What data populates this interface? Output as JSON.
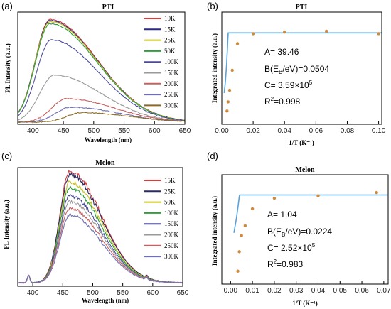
{
  "chart_data": [
    {
      "id": "a",
      "type": "line",
      "panel_label": "(a)",
      "title": "PTI",
      "xlabel": "Wavelength (nm)",
      "ylabel": "PL Intensity (a.u.)",
      "xlim": [
        375,
        650
      ],
      "ylim": [
        0,
        1.05
      ],
      "xticks": [
        "400",
        "450",
        "500",
        "550",
        "600",
        "650"
      ],
      "xtick_values": [
        400,
        450,
        500,
        550,
        600,
        650
      ],
      "legend_placement": "top-right",
      "series": [
        {
          "name": "10K",
          "color": "#d93a3a",
          "peak": 0.96,
          "center": 428
        },
        {
          "name": "15K",
          "color": "#2a2a80",
          "peak": 0.95,
          "center": 428
        },
        {
          "name": "25K",
          "color": "#c8c020",
          "peak": 0.94,
          "center": 428
        },
        {
          "name": "50K",
          "color": "#2e9e3a",
          "peak": 0.92,
          "center": 428
        },
        {
          "name": "100K",
          "color": "#4a4a9a",
          "peak": 0.77,
          "center": 430
        },
        {
          "name": "150K",
          "color": "#999999",
          "peak": 0.44,
          "center": 435
        },
        {
          "name": "200K",
          "color": "#c86060",
          "peak": 0.22,
          "center": 455
        },
        {
          "name": "250K",
          "color": "#6f6fb5",
          "peak": 0.14,
          "center": 462
        },
        {
          "name": "300K",
          "color": "#8b6b22",
          "peak": 0.09,
          "center": 480
        }
      ]
    },
    {
      "id": "b",
      "type": "scatter",
      "panel_label": "(b)",
      "title": "PTI",
      "xlabel": "1/T (K⁻¹)",
      "ylabel": "Integrated intensity (a.u.)",
      "xlim": [
        0,
        0.102
      ],
      "ylim": [
        -0.1,
        1.25
      ],
      "xticks": [
        "0.00",
        "0.02",
        "0.04",
        "0.06",
        "0.08",
        "0.10"
      ],
      "xtick_values": [
        0,
        0.02,
        0.04,
        0.06,
        0.08,
        0.1
      ],
      "points": [
        {
          "x": 0.00333,
          "y": 0.06
        },
        {
          "x": 0.004,
          "y": 0.17
        },
        {
          "x": 0.005,
          "y": 0.31
        },
        {
          "x": 0.00667,
          "y": 0.55
        },
        {
          "x": 0.01,
          "y": 0.87
        },
        {
          "x": 0.02,
          "y": 0.99
        },
        {
          "x": 0.04,
          "y": 1.01
        },
        {
          "x": 0.0667,
          "y": 1.02
        },
        {
          "x": 0.1,
          "y": 0.99
        }
      ],
      "fit_Eb": 0.0504,
      "annotations": {
        "A": "A= 39.46",
        "B": "B(E",
        "B_sub": "B",
        "B_rest": "/eV)=0.0504",
        "C": "C= 3.59×10",
        "C_sup": "5",
        "R": "R",
        "R_sup": "2",
        "R_rest": "=0.998"
      }
    },
    {
      "id": "c",
      "type": "line",
      "panel_label": "(c)",
      "title": "Melon",
      "xlabel": "Wavelength (nm)",
      "ylabel": "PL Intensity (a.u.)",
      "xlim": [
        375,
        650
      ],
      "ylim": [
        0,
        1.05
      ],
      "xticks": [
        "400",
        "450",
        "500",
        "550",
        "600",
        "650"
      ],
      "xtick_values": [
        400,
        450,
        500,
        550,
        600,
        650
      ],
      "legend_placement": "top-right",
      "series": [
        {
          "name": "15K",
          "color": "#d93a3a",
          "peak": 0.99
        },
        {
          "name": "25K",
          "color": "#2a2a60",
          "peak": 0.96
        },
        {
          "name": "50K",
          "color": "#c8c020",
          "peak": 0.89
        },
        {
          "name": "100K",
          "color": "#2e9e3a",
          "peak": 0.84
        },
        {
          "name": "150K",
          "color": "#4a4a9a",
          "peak": 0.77
        },
        {
          "name": "200K",
          "color": "#999999",
          "peak": 0.72
        },
        {
          "name": "250K",
          "color": "#c86060",
          "peak": 0.66
        },
        {
          "name": "300K",
          "color": "#6f6fb5",
          "peak": 0.6
        }
      ]
    },
    {
      "id": "d",
      "type": "scatter",
      "panel_label": "(d)",
      "title": "Melon",
      "xlabel": "1/T (K⁻¹)",
      "ylabel": "Integrated intensity (a.u.)",
      "xlim": [
        -0.004,
        0.072
      ],
      "ylim": [
        -0.1,
        1.25
      ],
      "xticks": [
        "0.00",
        "0.01",
        "0.02",
        "0.03",
        "0.04",
        "0.05",
        "0.06",
        "0.07"
      ],
      "xtick_values": [
        0,
        0.01,
        0.02,
        0.03,
        0.04,
        0.05,
        0.06,
        0.07
      ],
      "points": [
        {
          "x": 0.00333,
          "y": 0.06
        },
        {
          "x": 0.004,
          "y": 0.3
        },
        {
          "x": 0.005,
          "y": 0.5
        },
        {
          "x": 0.00667,
          "y": 0.62
        },
        {
          "x": 0.01,
          "y": 0.83
        },
        {
          "x": 0.02,
          "y": 0.96
        },
        {
          "x": 0.04,
          "y": 0.99
        },
        {
          "x": 0.0667,
          "y": 1.03
        }
      ],
      "fit_Eb": 0.0224,
      "annotations": {
        "A": "A= 1.04",
        "B": "B(E",
        "B_sub": "B",
        "B_rest": "/eV)=0.0224",
        "C": "C= 2.52×10",
        "C_sup": "5",
        "R": "R",
        "R_sup": "2",
        "R_rest": "=0.983"
      }
    }
  ]
}
